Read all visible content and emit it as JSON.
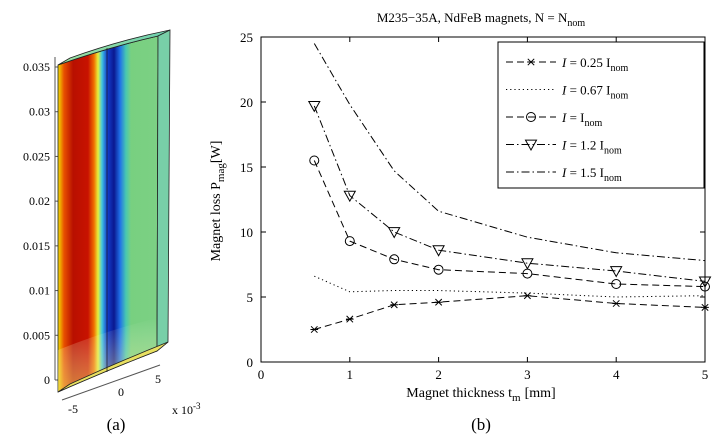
{
  "panel_a": {
    "caption": "(a)",
    "y_ticks": [
      "0",
      "0.005",
      "0.01",
      "0.015",
      "0.02",
      "0.025",
      "0.03",
      "0.035"
    ],
    "x_ticks": [
      "-5",
      "0",
      "5"
    ],
    "x_exponent_base": "x 10",
    "x_exponent_power": "-3"
  },
  "panel_b": {
    "caption": "(b)"
  },
  "chart_data": {
    "type": "line",
    "title": "M235−35A, NdFeB magnets, N = N",
    "title_sub": "nom",
    "xlabel_main": "Magnet thickness t",
    "xlabel_sub": "m",
    "xlabel_unit": "[mm]",
    "ylabel_main": "Magnet loss P",
    "ylabel_sub": "mag",
    "ylabel_unit": "[W]",
    "xlim": [
      0,
      5
    ],
    "ylim": [
      0,
      25
    ],
    "x_ticks": [
      "0",
      "1",
      "2",
      "3",
      "4",
      "5"
    ],
    "y_ticks": [
      "0",
      "5",
      "10",
      "15",
      "20",
      "25"
    ],
    "grid": false,
    "legend_position": "top-right",
    "series": [
      {
        "name": "I = 0.25 I",
        "name_sub": "nom",
        "color": "#000000",
        "line_style": "dashed",
        "marker": "star",
        "x": [
          0.6,
          1,
          1.5,
          2,
          3,
          4,
          5
        ],
        "values": [
          2.5,
          3.3,
          4.4,
          4.6,
          5.1,
          4.5,
          4.2
        ]
      },
      {
        "name": "I = 0.67 I",
        "name_sub": "nom",
        "color": "#000000",
        "line_style": "dotted",
        "marker": "none",
        "x": [
          0.6,
          1,
          1.5,
          2,
          3,
          4,
          5
        ],
        "values": [
          6.6,
          5.4,
          5.5,
          5.5,
          5.3,
          5.0,
          5.1
        ]
      },
      {
        "name": "I = I",
        "name_sub": "nom",
        "color": "#000000",
        "line_style": "dashed",
        "marker": "circle",
        "x": [
          0.6,
          1,
          1.5,
          2,
          3,
          4,
          5
        ],
        "values": [
          15.5,
          9.3,
          7.9,
          7.1,
          6.8,
          6.0,
          5.8
        ]
      },
      {
        "name": "I = 1.2 I",
        "name_sub": "nom",
        "color": "#000000",
        "line_style": "dashdot",
        "marker": "triangle-down",
        "x": [
          0.6,
          1,
          1.5,
          2,
          3,
          4,
          5
        ],
        "values": [
          19.7,
          12.8,
          10.0,
          8.6,
          7.6,
          7.0,
          6.2
        ]
      },
      {
        "name": "I = 1.5 I",
        "name_sub": "nom",
        "color": "#000000",
        "line_style": "dashdot",
        "marker": "none",
        "x": [
          0.6,
          1,
          1.5,
          2,
          3,
          4,
          5
        ],
        "values": [
          24.5,
          19.8,
          14.7,
          11.6,
          9.6,
          8.4,
          7.8
        ]
      }
    ]
  }
}
